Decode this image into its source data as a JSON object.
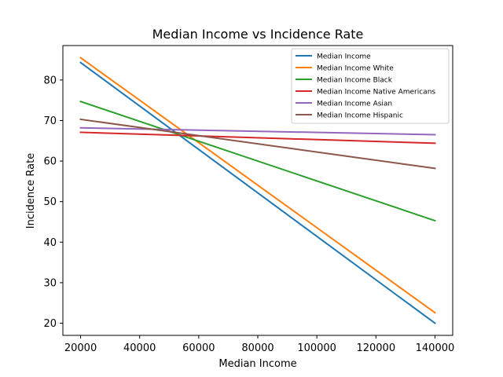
{
  "chart_data": {
    "type": "line",
    "title": "Median Income vs Incidence Rate",
    "xlabel": "Median Income",
    "ylabel": "Incidence Rate",
    "xlim": [
      14000,
      146000
    ],
    "ylim": [
      17,
      88.5
    ],
    "xticks": [
      20000,
      40000,
      60000,
      80000,
      100000,
      120000,
      140000
    ],
    "yticks": [
      20,
      30,
      40,
      50,
      60,
      70,
      80
    ],
    "grid": false,
    "legend_position": "top-right",
    "x": [
      20000,
      140000
    ],
    "series": [
      {
        "name": "Median Income",
        "color": "#1f77b4",
        "values": [
          84.3,
          20.0
        ]
      },
      {
        "name": "Median Income White",
        "color": "#ff7f0e",
        "values": [
          85.5,
          22.6
        ]
      },
      {
        "name": "Median Income Black",
        "color": "#2ca02c",
        "values": [
          74.7,
          45.3
        ]
      },
      {
        "name": "Median Income Native Americans",
        "color": "#d62728",
        "values": [
          67.1,
          64.4
        ]
      },
      {
        "name": "Median Income Asian",
        "color": "#9467bd",
        "values": [
          68.2,
          66.5
        ]
      },
      {
        "name": "Median Income Hispanic",
        "color": "#8c564b",
        "values": [
          70.3,
          58.2
        ]
      }
    ]
  }
}
